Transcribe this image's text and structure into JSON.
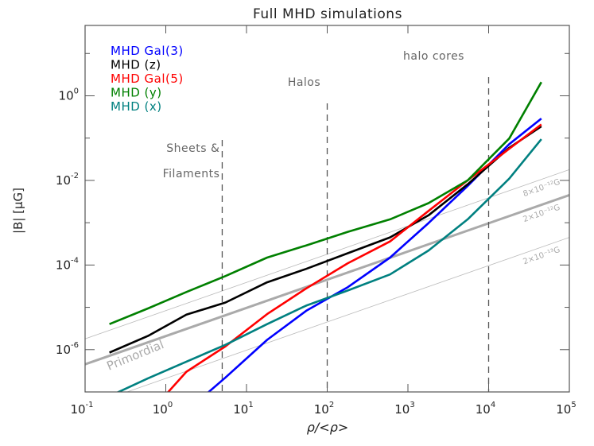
{
  "chart_data": {
    "type": "line",
    "title": "Full MHD simulations",
    "xlabel": "ρ/<ρ>",
    "ylabel": "|B| [μG]",
    "xscale": "log",
    "yscale": "log",
    "xlim": [
      0.1,
      100000
    ],
    "ylim": [
      1e-07,
      46
    ],
    "grid": false,
    "legend_position": "top-left",
    "x_ticks": [
      {
        "value": 0.1,
        "base": "10",
        "exp": "-1"
      },
      {
        "value": 1,
        "base": "10",
        "exp": "0"
      },
      {
        "value": 10,
        "base": "10",
        "exp": "1"
      },
      {
        "value": 100,
        "base": "10",
        "exp": "2"
      },
      {
        "value": 1000,
        "base": "10",
        "exp": "3"
      },
      {
        "value": 10000,
        "base": "10",
        "exp": "4"
      },
      {
        "value": 100000,
        "base": "10",
        "exp": "5"
      }
    ],
    "y_ticks": [
      {
        "value": 1e-06,
        "base": "10",
        "exp": "-6"
      },
      {
        "value": 0.0001,
        "base": "10",
        "exp": "-4"
      },
      {
        "value": 0.01,
        "base": "10",
        "exp": "-2"
      },
      {
        "value": 1,
        "base": "10",
        "exp": "0"
      }
    ],
    "series": [
      {
        "name": "MHD Gal(3)",
        "color": "#0000ff",
        "x": [
          1.8,
          5.5,
          18,
          55,
          180,
          600,
          1800,
          5500,
          18000,
          45000
        ],
        "y": [
          3.5e-08,
          2.2e-07,
          1.7e-06,
          8.3e-06,
          3e-05,
          0.00015,
          0.00098,
          0.0074,
          0.072,
          0.29
        ]
      },
      {
        "name": "MHD (z)",
        "color": "#000000",
        "x": [
          0.2,
          0.6,
          1.8,
          5.5,
          18,
          55,
          180,
          600,
          1800,
          5500,
          18000,
          45000
        ],
        "y": [
          8.5e-07,
          2.1e-06,
          6.7e-06,
          1.3e-05,
          3.9e-05,
          8.1e-05,
          0.00019,
          0.00045,
          0.0015,
          0.0081,
          0.059,
          0.19
        ]
      },
      {
        "name": "MHD Gal(5)",
        "color": "#ff0000",
        "x": [
          0.6,
          1.8,
          5.5,
          18,
          55,
          180,
          600,
          1800,
          5500,
          18000,
          45000
        ],
        "y": [
          2.9e-08,
          3e-07,
          1.2e-06,
          6.9e-06,
          2.8e-05,
          0.00011,
          0.00036,
          0.0019,
          0.01,
          0.056,
          0.21
        ]
      },
      {
        "name": "MHD (y)",
        "color": "#008000",
        "x": [
          0.2,
          0.6,
          1.8,
          5.5,
          18,
          55,
          180,
          600,
          1800,
          5500,
          18000,
          45000
        ],
        "y": [
          4e-06,
          9.4e-06,
          2.3e-05,
          5.5e-05,
          0.00015,
          0.00029,
          0.00061,
          0.0012,
          0.0029,
          0.01,
          0.098,
          2.1
        ]
      },
      {
        "name": "MHD (x)",
        "color": "#008080",
        "x": [
          0.2,
          0.6,
          1.8,
          5.5,
          18,
          55,
          180,
          600,
          1800,
          5500,
          18000,
          45000
        ],
        "y": [
          7.9e-08,
          2.1e-07,
          5.2e-07,
          1.3e-06,
          4e-06,
          1.1e-05,
          2.5e-05,
          6e-05,
          0.00022,
          0.0012,
          0.011,
          0.094
        ]
      }
    ],
    "reference_lines": [
      {
        "label": "8×10⁻¹²G",
        "color": "#bbbbbb",
        "x": [
          0.1,
          100000
        ],
        "y": [
          1.8e-06,
          0.018
        ],
        "thick": false
      },
      {
        "label": "2×10⁻¹²G",
        "color": "#aaaaaa",
        "x": [
          0.1,
          100000
        ],
        "y": [
          4.5e-07,
          0.0045
        ],
        "thick": true,
        "extra_label": "Primordial"
      },
      {
        "label": "2×10⁻¹³G",
        "color": "#bbbbbb",
        "x": [
          0.1,
          100000
        ],
        "y": [
          4.5e-08,
          0.00045
        ],
        "thick": false
      }
    ],
    "vertical_markers": [
      {
        "x": 5,
        "label_lines": [
          "Sheets &",
          "Filaments"
        ]
      },
      {
        "x": 100,
        "label_lines": [
          "Halos"
        ]
      },
      {
        "x": 10000,
        "label_lines": [
          "halo cores"
        ]
      }
    ]
  }
}
